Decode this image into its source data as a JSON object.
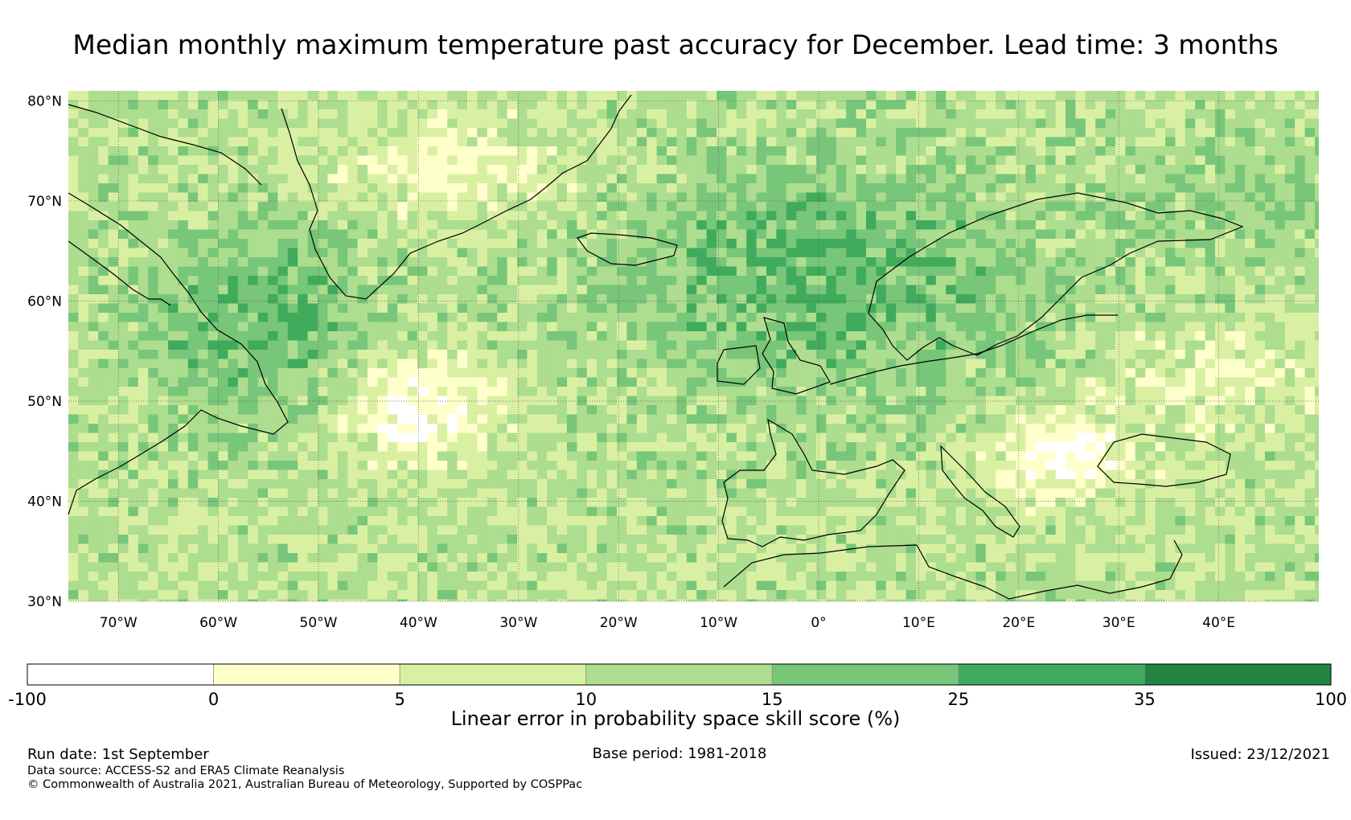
{
  "title": "Median monthly maximum temperature past accuracy for December. Lead time: 3 months",
  "map": {
    "lat_ticks": [
      "80°N",
      "70°N",
      "60°N",
      "50°N",
      "40°N",
      "30°N"
    ],
    "lon_ticks": [
      "70°W",
      "60°W",
      "50°W",
      "40°W",
      "30°W",
      "20°W",
      "10°W",
      "0°",
      "10°E",
      "20°E",
      "30°E",
      "40°E"
    ],
    "lon_range": [
      -75,
      50
    ],
    "lat_range": [
      30,
      81
    ]
  },
  "colorbar": {
    "ticks": [
      "-100",
      "0",
      "5",
      "10",
      "15",
      "25",
      "35",
      "100"
    ],
    "colors": [
      "#ffffff",
      "#ffffcc",
      "#d9f0a3",
      "#addd8e",
      "#78c679",
      "#41ab5d",
      "#238443"
    ],
    "label": "Linear error in probability space skill score (%)"
  },
  "footer": {
    "run_date": "Run date: 1st September",
    "base_period": "Base period: 1981-2018",
    "issued": "Issued: 23/12/2021",
    "data_source": "Data source: ACCESS-S2 and ERA5 Climate Reanalysis",
    "copyright": "© Commonwealth of Australia 2021, Australian Bureau of Meteorology, Supported by COSPPac"
  }
}
